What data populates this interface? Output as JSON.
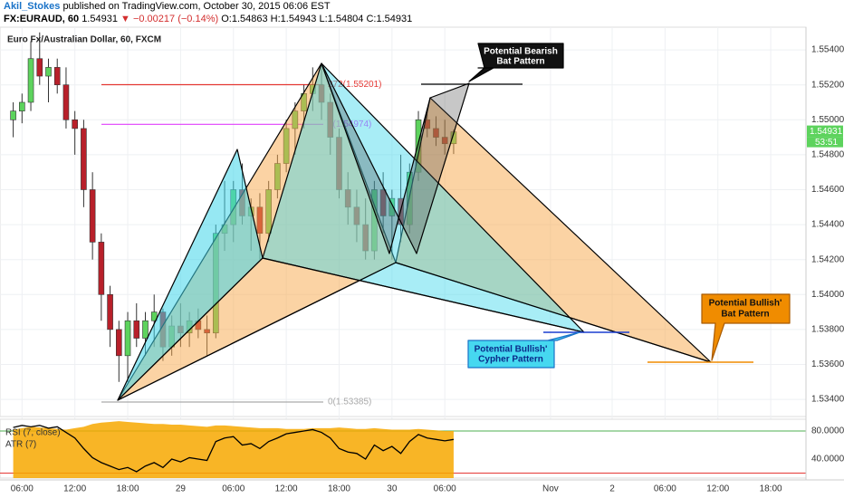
{
  "header": {
    "author": "Akil_Stokes",
    "published": "published on TradingView.com, October 30, 2015 06:06 EST",
    "symbol": "FX:EURAUD, 60",
    "last": "1.54931",
    "change": "▼ −0.00217 (−0.14%)",
    "ohlc": [
      "O:1.54863",
      "H:1.54943",
      "L:1.54804",
      "C:1.54931"
    ]
  },
  "chart_data": [
    {
      "type": "candlestick",
      "title": "Euro Fx/Australian Dollar, 60, FXCM",
      "x": [
        -1,
        0,
        1,
        2,
        3,
        4,
        5,
        6,
        7,
        8,
        9,
        10,
        11,
        12,
        13,
        14,
        15,
        16,
        17,
        18,
        19,
        20,
        21,
        22,
        23,
        24,
        25,
        26,
        27,
        28,
        29,
        30,
        31,
        32,
        33,
        34,
        35,
        36,
        37,
        38,
        39,
        40,
        41,
        42,
        43,
        44,
        45,
        46,
        47,
        48,
        49
      ],
      "open": [
        1.55,
        1.5505,
        1.551,
        1.5535,
        1.5525,
        1.553,
        1.552,
        1.55,
        1.5495,
        1.546,
        1.543,
        1.54,
        1.538,
        1.5365,
        1.5385,
        1.5375,
        1.5385,
        1.539,
        1.537,
        1.5382,
        1.5378,
        1.5385,
        1.538,
        1.5378,
        1.5435,
        1.544,
        1.546,
        1.5445,
        1.545,
        1.5435,
        1.546,
        1.5475,
        1.5495,
        1.5505,
        1.5515,
        1.552,
        1.551,
        1.549,
        1.546,
        1.545,
        1.544,
        1.5425,
        1.546,
        1.5445,
        1.5455,
        1.544,
        1.547,
        1.55,
        1.5495,
        1.549,
        1.54863
      ],
      "high": [
        1.551,
        1.5515,
        1.5545,
        1.555,
        1.5535,
        1.5535,
        1.553,
        1.5505,
        1.55,
        1.547,
        1.5435,
        1.5405,
        1.5385,
        1.539,
        1.5395,
        1.539,
        1.54,
        1.5392,
        1.5388,
        1.5395,
        1.539,
        1.5392,
        1.5388,
        1.544,
        1.5465,
        1.5465,
        1.5475,
        1.5455,
        1.5458,
        1.5465,
        1.548,
        1.55,
        1.551,
        1.552,
        1.553,
        1.5532,
        1.5515,
        1.5495,
        1.547,
        1.546,
        1.5455,
        1.5465,
        1.547,
        1.546,
        1.548,
        1.5475,
        1.5505,
        1.5505,
        1.5502,
        1.55,
        1.54943
      ],
      "low": [
        1.549,
        1.5498,
        1.5505,
        1.552,
        1.551,
        1.5515,
        1.5495,
        1.548,
        1.545,
        1.542,
        1.5385,
        1.537,
        1.535,
        1.535,
        1.537,
        1.5365,
        1.537,
        1.5362,
        1.5365,
        1.537,
        1.537,
        1.5375,
        1.5365,
        1.5375,
        1.5425,
        1.543,
        1.544,
        1.5425,
        1.542,
        1.543,
        1.5455,
        1.547,
        1.548,
        1.5495,
        1.5505,
        1.55,
        1.548,
        1.5455,
        1.544,
        1.543,
        1.542,
        1.542,
        1.5435,
        1.542,
        1.543,
        1.5435,
        1.5465,
        1.549,
        1.5485,
        1.548,
        1.54804
      ],
      "close": [
        1.5505,
        1.551,
        1.5535,
        1.5525,
        1.553,
        1.552,
        1.55,
        1.5495,
        1.546,
        1.543,
        1.54,
        1.538,
        1.5365,
        1.5385,
        1.5375,
        1.5385,
        1.539,
        1.537,
        1.5382,
        1.5378,
        1.5385,
        1.538,
        1.5378,
        1.5435,
        1.544,
        1.546,
        1.5445,
        1.545,
        1.5435,
        1.546,
        1.5475,
        1.5495,
        1.5505,
        1.5515,
        1.552,
        1.551,
        1.549,
        1.546,
        1.545,
        1.544,
        1.5425,
        1.546,
        1.5445,
        1.5455,
        1.544,
        1.547,
        1.55,
        1.5495,
        1.549,
        1.54863,
        1.54931
      ],
      "up_color": "#5dd35d",
      "down_color": "#b8202a",
      "xlim": [
        -2.5,
        89
      ],
      "xticks": [
        {
          "value": 0,
          "label": "06:00"
        },
        {
          "value": 6,
          "label": "12:00"
        },
        {
          "value": 12,
          "label": "18:00"
        },
        {
          "value": 18,
          "label": "29"
        },
        {
          "value": 24,
          "label": "06:00"
        },
        {
          "value": 30,
          "label": "12:00"
        },
        {
          "value": 36,
          "label": "18:00"
        },
        {
          "value": 42,
          "label": "30"
        },
        {
          "value": 48,
          "label": "06:00"
        },
        {
          "value": 60,
          "label": "Nov"
        },
        {
          "value": 67,
          "label": "2"
        },
        {
          "value": 73,
          "label": "06:00"
        },
        {
          "value": 79,
          "label": "12:00"
        },
        {
          "value": 85,
          "label": "18:00"
        }
      ],
      "ylim": [
        1.53302,
        1.5553
      ],
      "yticks": [
        {
          "value": 1.534,
          "label": "1.53400"
        },
        {
          "value": 1.536,
          "label": "1.53600"
        },
        {
          "value": 1.538,
          "label": "1.53800"
        },
        {
          "value": 1.54,
          "label": "1.54000"
        },
        {
          "value": 1.542,
          "label": "1.54200"
        },
        {
          "value": 1.544,
          "label": "1.54400"
        },
        {
          "value": 1.546,
          "label": "1.54600"
        },
        {
          "value": 1.548,
          "label": "1.54800"
        },
        {
          "value": 1.55,
          "label": "1.55000"
        },
        {
          "value": 1.552,
          "label": "1.55200"
        },
        {
          "value": 1.554,
          "label": "1.55400"
        }
      ],
      "price_label": {
        "value": 1.54931,
        "label": "1.54931"
      },
      "countdown": "53:51",
      "fib_levels": [
        {
          "value": 1.55201,
          "label": "272(1.55201)",
          "color": "#e53935"
        },
        {
          "value": 1.54974,
          "label": "1(1.54974)",
          "color": "#e040fb"
        },
        {
          "value": 1.53385,
          "label": "0(1.53385)",
          "color": "#aaaaaa"
        }
      ],
      "annotations": {
        "bearish_bat": [
          "Potential Bearish",
          "Bat Pattern"
        ],
        "bullish_cypher": [
          "Potential Bullish'",
          "Cypher Pattern"
        ],
        "bullish_bat": [
          "Potential Bullish'",
          "Bat Pattern"
        ]
      }
    },
    {
      "type": "line",
      "x": [
        -1,
        0,
        1,
        2,
        3,
        4,
        5,
        6,
        7,
        8,
        9,
        10,
        11,
        12,
        13,
        14,
        15,
        16,
        17,
        18,
        19,
        20,
        21,
        22,
        23,
        24,
        25,
        26,
        27,
        28,
        29,
        30,
        31,
        32,
        33,
        34,
        35,
        36,
        37,
        38,
        39,
        40,
        41,
        42,
        43,
        44,
        45,
        46,
        47,
        48,
        49
      ],
      "series": [
        {
          "name": "RSI (7, close)",
          "color": "#000000",
          "values": [
            85,
            88,
            86,
            88,
            84,
            86,
            78,
            70,
            55,
            42,
            35,
            30,
            25,
            28,
            22,
            30,
            35,
            28,
            40,
            36,
            42,
            40,
            38,
            65,
            70,
            72,
            60,
            62,
            55,
            65,
            70,
            76,
            78,
            80,
            82,
            78,
            70,
            55,
            50,
            48,
            40,
            60,
            52,
            58,
            48,
            65,
            75,
            70,
            68,
            66,
            68
          ]
        },
        {
          "name": "ATR (7)",
          "color": "#f7a800",
          "values": [
            82,
            84,
            86,
            85,
            84,
            83,
            82,
            84,
            86,
            90,
            92,
            93,
            94,
            93,
            92,
            91,
            90,
            90,
            89,
            89,
            88,
            87,
            86,
            88,
            88,
            87,
            86,
            85,
            84,
            84,
            84,
            83,
            83,
            83,
            84,
            84,
            84,
            85,
            84,
            83,
            83,
            84,
            83,
            82,
            82,
            82,
            83,
            82,
            81,
            80,
            80
          ]
        }
      ],
      "ylim": [
        12.9,
        96.8
      ],
      "yticks": [
        {
          "value": 80,
          "label": "80.0000"
        },
        {
          "value": 40,
          "label": "40.0000"
        }
      ],
      "hlines": [
        {
          "value": 80,
          "color": "#4caf50"
        },
        {
          "value": 20,
          "color": "#e53935"
        }
      ]
    }
  ]
}
